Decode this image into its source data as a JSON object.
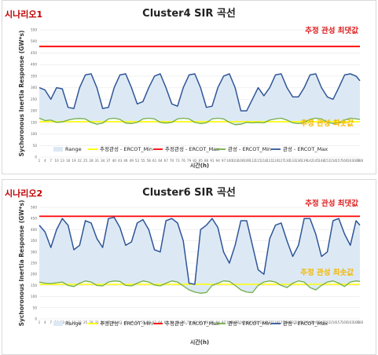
{
  "chart_data": [
    {
      "type": "line",
      "scenario_label": "시나리오1",
      "title": "Cluster4 SIR 곡선",
      "xlabel": "시간(h)",
      "ylabel": "Sychoronous Inertia Response (GW*s)",
      "ylim": [
        0,
        550
      ],
      "yticks": [
        0,
        50,
        100,
        150,
        200,
        250,
        300,
        350,
        400,
        450,
        500,
        550
      ],
      "x": [
        1,
        4,
        7,
        10,
        13,
        16,
        19,
        22,
        25,
        28,
        31,
        34,
        37,
        40,
        43,
        46,
        49,
        52,
        55,
        58,
        61,
        64,
        67,
        70,
        73,
        76,
        79,
        82,
        85,
        88,
        91,
        94,
        97,
        100,
        103,
        106,
        109,
        112,
        115,
        118,
        121,
        124,
        127,
        130,
        133,
        136,
        139,
        142,
        145,
        148,
        151,
        154,
        157,
        160,
        163,
        166,
        168
      ],
      "annotations": {
        "max_label": "추정 관성 최댓값",
        "min_label": "추정 관성 최솟값"
      },
      "legend": [
        "Range",
        "추정관성 - ERCOT_Min",
        "추정관성 - ERCOT_Max",
        "관성 - ERCOT_Min",
        "관성 - ERCOT_Max"
      ],
      "series": [
        {
          "name": "추정관성 - ERCOT_Min",
          "color": "#ffff00",
          "values": [
            153,
            153,
            153,
            153,
            153,
            153,
            153,
            153,
            153,
            153,
            153,
            153,
            153,
            153,
            153,
            153,
            153,
            153,
            153,
            153,
            153,
            153,
            153,
            153,
            153,
            153,
            153,
            153,
            153,
            153,
            153,
            153,
            153,
            153,
            153,
            153,
            153,
            153,
            153,
            153,
            153,
            153,
            153,
            153,
            153,
            153,
            153,
            153,
            153,
            153,
            153,
            153,
            153,
            153,
            153,
            153,
            153
          ]
        },
        {
          "name": "추정관성 - ERCOT_Max",
          "color": "#ff0000",
          "values": [
            478,
            478,
            478,
            478,
            478,
            478,
            478,
            478,
            478,
            478,
            478,
            478,
            478,
            478,
            478,
            478,
            478,
            478,
            478,
            478,
            478,
            478,
            478,
            478,
            478,
            478,
            478,
            478,
            478,
            478,
            478,
            478,
            478,
            478,
            478,
            478,
            478,
            478,
            478,
            478,
            478,
            478,
            478,
            478,
            478,
            478,
            478,
            478,
            478,
            478,
            478,
            478,
            478,
            478,
            478,
            478,
            478
          ]
        },
        {
          "name": "관성 - ERCOT_Min",
          "color": "#70ad47",
          "values": [
            168,
            158,
            160,
            150,
            152,
            160,
            165,
            167,
            165,
            150,
            142,
            147,
            165,
            168,
            163,
            147,
            145,
            150,
            165,
            168,
            165,
            150,
            147,
            150,
            165,
            168,
            165,
            150,
            145,
            148,
            165,
            168,
            165,
            150,
            140,
            142,
            150,
            148,
            150,
            148,
            160,
            165,
            168,
            160,
            148,
            145,
            150,
            163,
            168,
            165,
            150,
            145,
            148,
            160,
            168,
            165,
            163
          ]
        },
        {
          "name": "관성 - ERCOT_Max",
          "color": "#2f5597",
          "values": [
            300,
            290,
            250,
            300,
            295,
            215,
            210,
            300,
            355,
            360,
            300,
            210,
            215,
            300,
            355,
            360,
            300,
            230,
            240,
            300,
            350,
            360,
            300,
            230,
            220,
            300,
            355,
            360,
            300,
            215,
            220,
            300,
            350,
            360,
            300,
            200,
            200,
            250,
            300,
            265,
            300,
            355,
            360,
            300,
            260,
            260,
            300,
            355,
            360,
            300,
            260,
            250,
            300,
            355,
            360,
            350,
            330
          ]
        }
      ]
    },
    {
      "type": "line",
      "scenario_label": "시나리오2",
      "title": "Cluster6 SIR 곡선",
      "xlabel": "시간(h)",
      "ylabel": "Sychoronous Inertia Response (GW*s)",
      "ylim": [
        0,
        500
      ],
      "yticks": [
        0,
        50,
        100,
        150,
        200,
        250,
        300,
        350,
        400,
        450,
        500
      ],
      "x": [
        1,
        4,
        7,
        10,
        13,
        16,
        19,
        22,
        25,
        28,
        31,
        34,
        37,
        40,
        43,
        46,
        49,
        52,
        55,
        58,
        61,
        64,
        67,
        70,
        73,
        76,
        79,
        82,
        85,
        88,
        91,
        94,
        97,
        100,
        103,
        106,
        109,
        112,
        115,
        118,
        121,
        124,
        127,
        130,
        133,
        136,
        139,
        142,
        145,
        148,
        151,
        154,
        157,
        160,
        163,
        166,
        168
      ],
      "annotations": {
        "max_label": "추정 관성 최댓값",
        "min_label": "추정 관성 최솟값"
      },
      "legend": [
        "Range",
        "추정관성 - ERCOT_Min",
        "추정관성 - ERCOT_Max",
        "관성 - ERCOT_Min",
        "관성 - ERCOT_Max"
      ],
      "series": [
        {
          "name": "추정관성 - ERCOT_Min",
          "color": "#ffff00",
          "values": [
            155,
            155,
            155,
            155,
            155,
            155,
            155,
            155,
            155,
            155,
            155,
            155,
            155,
            155,
            155,
            155,
            155,
            155,
            155,
            155,
            155,
            155,
            155,
            155,
            155,
            155,
            155,
            155,
            155,
            155,
            155,
            155,
            155,
            155,
            155,
            155,
            155,
            155,
            155,
            155,
            155,
            155,
            155,
            155,
            155,
            155,
            155,
            155,
            155,
            155,
            155,
            155,
            155,
            155,
            155,
            155,
            155
          ]
        },
        {
          "name": "추정관성 - ERCOT_Max",
          "color": "#ff0000",
          "values": [
            460,
            460,
            460,
            460,
            460,
            460,
            460,
            460,
            460,
            460,
            460,
            460,
            460,
            460,
            460,
            460,
            460,
            460,
            460,
            460,
            460,
            460,
            460,
            460,
            460,
            460,
            460,
            460,
            460,
            460,
            460,
            460,
            460,
            460,
            460,
            460,
            460,
            460,
            460,
            460,
            460,
            460,
            460,
            460,
            460,
            460,
            460,
            460,
            460,
            460,
            460,
            460,
            460,
            460,
            460,
            460,
            460
          ]
        },
        {
          "name": "관성 - ERCOT_Min",
          "color": "#70ad47",
          "values": [
            165,
            160,
            158,
            162,
            165,
            150,
            145,
            160,
            170,
            165,
            150,
            148,
            165,
            170,
            168,
            150,
            148,
            160,
            170,
            165,
            152,
            148,
            160,
            170,
            165,
            148,
            130,
            120,
            115,
            118,
            150,
            160,
            170,
            168,
            150,
            130,
            120,
            118,
            150,
            165,
            170,
            165,
            150,
            140,
            160,
            170,
            165,
            140,
            130,
            150,
            165,
            170,
            160,
            145,
            165,
            170,
            168
          ]
        },
        {
          "name": "관성 - ERCOT_Max",
          "color": "#2f5597",
          "values": [
            420,
            390,
            320,
            400,
            450,
            420,
            310,
            330,
            440,
            430,
            360,
            320,
            450,
            455,
            410,
            330,
            345,
            430,
            445,
            400,
            310,
            300,
            440,
            450,
            430,
            350,
            160,
            155,
            400,
            420,
            450,
            410,
            300,
            250,
            330,
            440,
            440,
            330,
            220,
            200,
            360,
            420,
            430,
            350,
            280,
            330,
            450,
            450,
            380,
            280,
            300,
            440,
            450,
            380,
            330,
            440,
            420
          ]
        }
      ]
    }
  ]
}
